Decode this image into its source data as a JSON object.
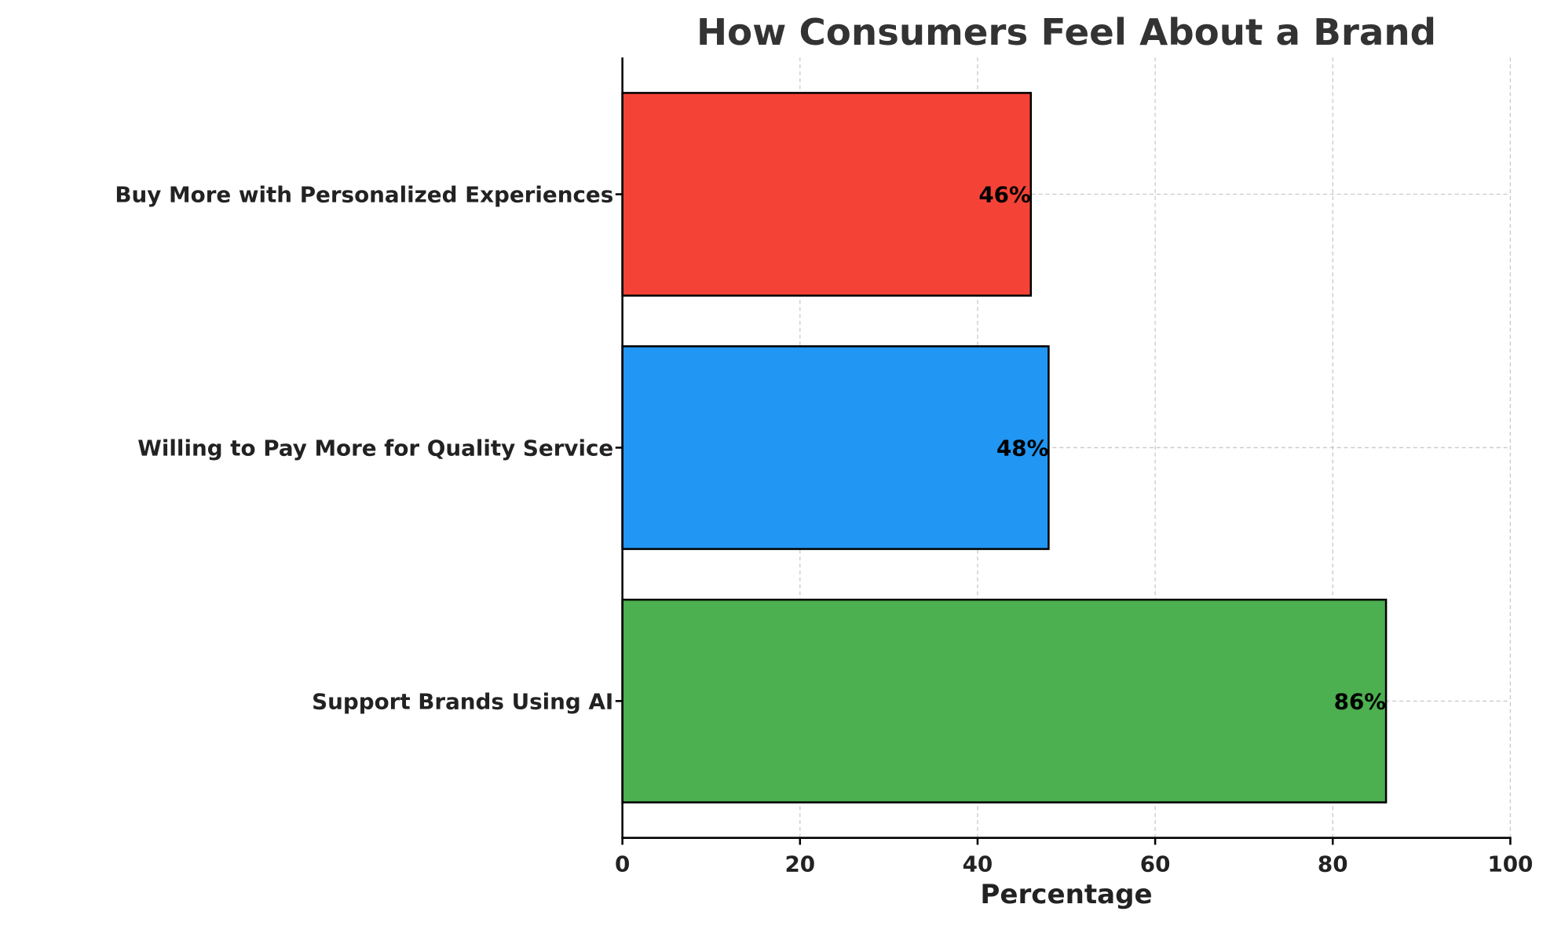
{
  "chart_data": {
    "type": "bar",
    "orientation": "horizontal",
    "title": "How Consumers Feel About a Brand",
    "xlabel": "Percentage",
    "ylabel": "",
    "xlim": [
      0,
      100
    ],
    "xticks": [
      "0",
      "20",
      "40",
      "60",
      "80",
      "100"
    ],
    "grid": true,
    "categories": [
      "Support Brands Using AI",
      "Willing to Pay More for Quality Service",
      "Buy More with Personalized Experiences"
    ],
    "values": [
      86,
      48,
      46
    ],
    "data_labels": [
      "86%",
      "48%",
      "46%"
    ],
    "colors": [
      "#4caf50",
      "#2196f3",
      "#f44336"
    ]
  }
}
